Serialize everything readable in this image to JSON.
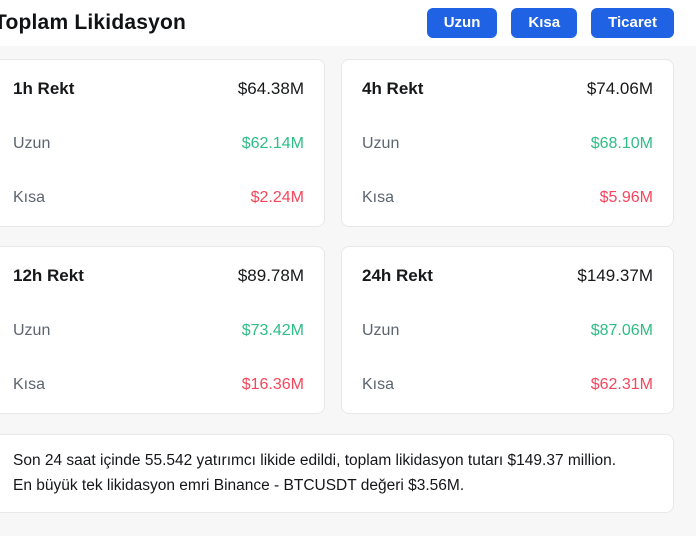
{
  "header": {
    "title": "Toplam Likidasyon",
    "buttons": [
      {
        "label": "Uzun"
      },
      {
        "label": "Kısa"
      },
      {
        "label": "Ticaret"
      }
    ]
  },
  "colors": {
    "accent": "#2062e4",
    "green": "#2ebd85",
    "red": "#f5465c"
  },
  "cards": [
    {
      "title": "1h Rekt",
      "total": "$64.38M",
      "long_label": "Uzun",
      "long_value": "$62.14M",
      "short_label": "Kısa",
      "short_value": "$2.24M"
    },
    {
      "title": "4h Rekt",
      "total": "$74.06M",
      "long_label": "Uzun",
      "long_value": "$68.10M",
      "short_label": "Kısa",
      "short_value": "$5.96M"
    },
    {
      "title": "12h Rekt",
      "total": "$89.78M",
      "long_label": "Uzun",
      "long_value": "$73.42M",
      "short_label": "Kısa",
      "short_value": "$16.36M"
    },
    {
      "title": "24h Rekt",
      "total": "$149.37M",
      "long_label": "Uzun",
      "long_value": "$87.06M",
      "short_label": "Kısa",
      "short_value": "$62.31M"
    }
  ],
  "summary": {
    "line1": "Son 24 saat içinde 55.542 yatırımcı likide edildi, toplam likidasyon tutarı $149.37 million.",
    "line2": "En büyük tek likidasyon emri Binance - BTCUSDT değeri $3.56M."
  }
}
